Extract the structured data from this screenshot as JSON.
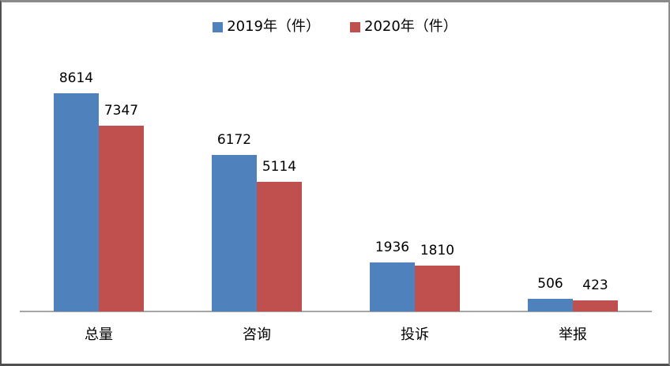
{
  "chart_data": {
    "type": "bar",
    "title": "",
    "xlabel": "",
    "ylabel": "",
    "categories": [
      "总量",
      "咨询",
      "投诉",
      "举报"
    ],
    "series": [
      {
        "name": "2019年（件）",
        "color": "#4F81BD",
        "values": [
          8614,
          6172,
          1936,
          506
        ]
      },
      {
        "name": "2020年（件）",
        "color": "#C0504D",
        "values": [
          7347,
          5114,
          1810,
          423
        ]
      }
    ],
    "ylim": [
      0,
      10000
    ],
    "grid": false,
    "legend_position": "top",
    "axis_line_color": "#A6A6A6",
    "data_labels_shown": true
  }
}
